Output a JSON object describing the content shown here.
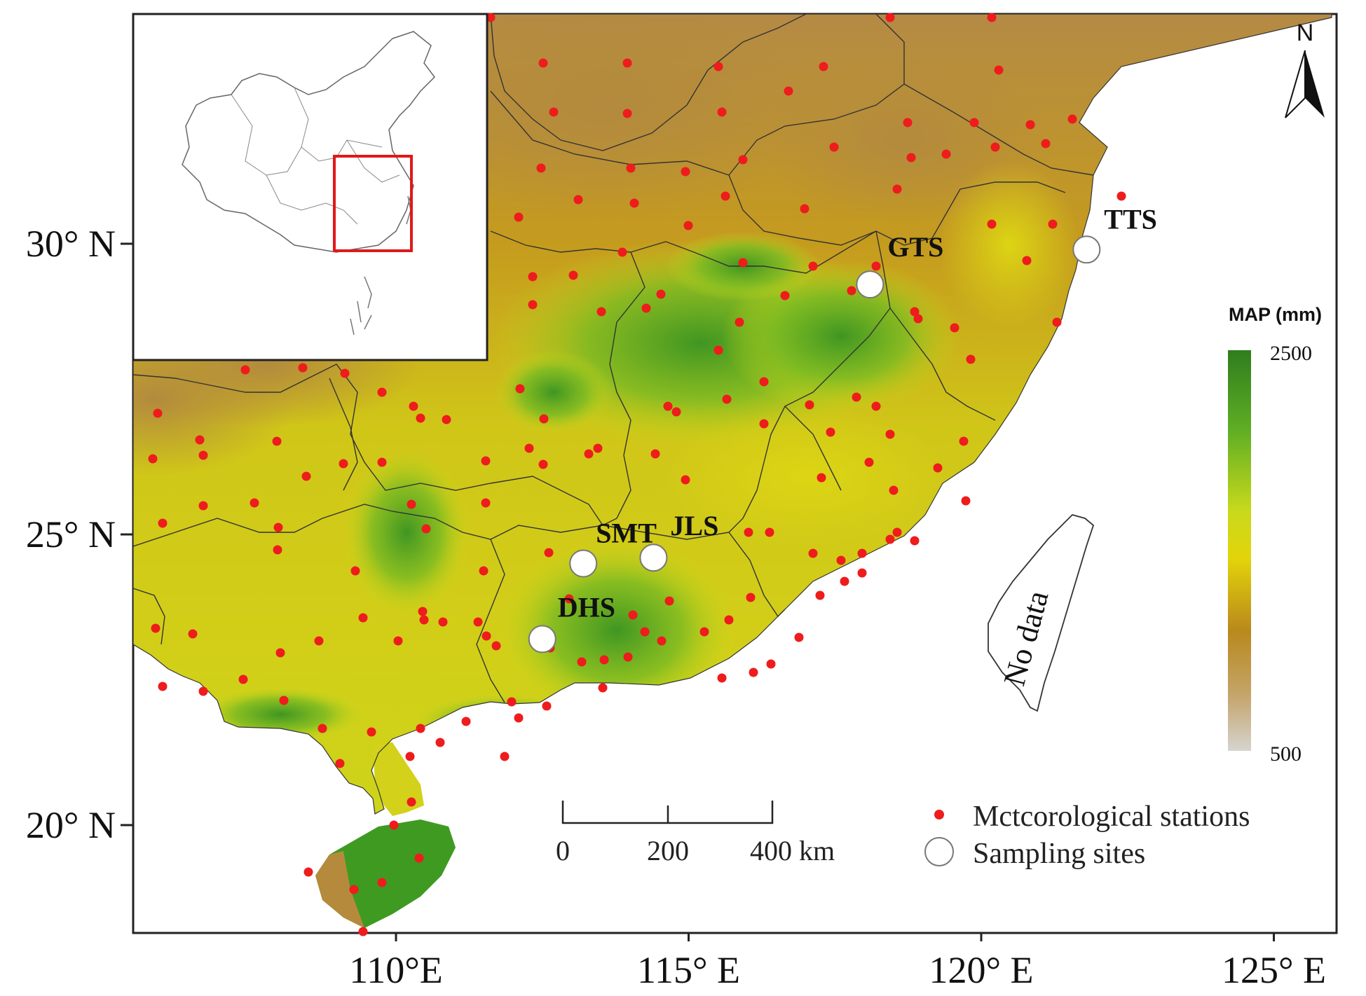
{
  "axes": {
    "x_ticks": [
      "110°E",
      "115° E",
      "120° E",
      "125° E"
    ],
    "y_ticks": [
      "30° N",
      "25° N",
      "20° N"
    ]
  },
  "north_arrow": {
    "label": "N",
    "icon": "north-arrow-icon"
  },
  "colorbar": {
    "title": "MAP (mm)",
    "max_label": "2500",
    "min_label": "500",
    "colors": [
      "#2f7d1e",
      "#5fae24",
      "#c8d91c",
      "#e3d40a",
      "#b9891c",
      "#c4a46a",
      "#d6d4cf"
    ]
  },
  "scalebar": {
    "labels": [
      "0",
      "200",
      "400 km"
    ]
  },
  "legend": {
    "items": [
      {
        "label": "Mctcorological stations",
        "symbol": "red-dot",
        "color": "#ee1c1c"
      },
      {
        "label": "Sampling sites",
        "symbol": "white-circle",
        "color": "#ffffff"
      }
    ]
  },
  "sampling_sites": [
    {
      "label": "TTS",
      "lon": 121.8,
      "lat": 29.9
    },
    {
      "label": "GTS",
      "lon": 118.1,
      "lat": 29.3
    },
    {
      "label": "SMT",
      "lon": 113.2,
      "lat": 24.5
    },
    {
      "label": "JLS",
      "lon": 114.4,
      "lat": 24.6
    },
    {
      "label": "DHS",
      "lon": 112.5,
      "lat": 23.2
    }
  ],
  "no_data_label": "No data",
  "inset": {
    "description_color": "#e01919"
  }
}
